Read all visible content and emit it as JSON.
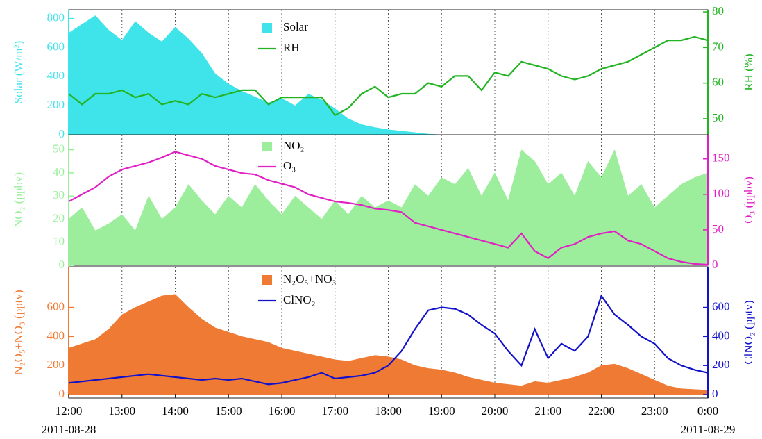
{
  "chart_data": [
    {
      "type": "combo",
      "x": [
        12,
        12.25,
        12.5,
        12.75,
        13,
        13.25,
        13.5,
        13.75,
        14,
        14.25,
        14.5,
        14.75,
        15,
        15.25,
        15.5,
        15.75,
        16,
        16.25,
        16.5,
        16.75,
        17,
        17.25,
        17.5,
        17.75,
        18,
        18.25,
        18.5,
        18.75,
        19,
        19.25,
        19.5,
        19.75,
        20,
        20.25,
        20.5,
        20.75,
        21,
        21.25,
        21.5,
        21.75,
        22,
        22.25,
        22.5,
        22.75,
        23,
        23.25,
        23.5,
        23.75,
        24
      ],
      "xlim": [
        12,
        24
      ],
      "ylim": [
        0,
        860
      ],
      "yticks": [
        0,
        200,
        400,
        600,
        800
      ],
      "ylabel": "Solar (W/m²)",
      "y2lim": [
        45.5,
        80.6
      ],
      "y2ticks": [
        50,
        60,
        70,
        80
      ],
      "y2label": "RH (%)",
      "series": [
        {
          "name": "Solar",
          "type": "area",
          "color": "#3fe3ea",
          "values": [
            700,
            760,
            820,
            720,
            650,
            780,
            700,
            640,
            740,
            660,
            560,
            420,
            350,
            300,
            260,
            220,
            250,
            200,
            280,
            240,
            180,
            110,
            70,
            50,
            35,
            25,
            15,
            5,
            0,
            0,
            0,
            0,
            0,
            0,
            0,
            0,
            0,
            0,
            0,
            0,
            0,
            0,
            0,
            0,
            0,
            0,
            0,
            0,
            0
          ]
        },
        {
          "name": "RH",
          "type": "line",
          "axis": "y2",
          "color": "#22b422",
          "values": [
            57,
            54,
            57,
            57,
            58,
            56,
            57,
            54,
            55,
            54,
            57,
            56,
            57,
            58,
            58,
            54,
            56,
            56,
            56,
            56,
            51,
            53,
            57,
            59,
            56,
            57,
            57,
            60,
            59,
            62,
            62,
            58,
            63,
            62,
            66,
            65,
            64,
            62,
            61,
            62,
            64,
            65,
            66,
            68,
            70,
            72,
            72,
            73,
            72
          ]
        }
      ]
    },
    {
      "type": "combo",
      "x": [
        12,
        12.25,
        12.5,
        12.75,
        13,
        13.25,
        13.5,
        13.75,
        14,
        14.25,
        14.5,
        14.75,
        15,
        15.25,
        15.5,
        15.75,
        16,
        16.25,
        16.5,
        16.75,
        17,
        17.25,
        17.5,
        17.75,
        18,
        18.25,
        18.5,
        18.75,
        19,
        19.25,
        19.5,
        19.75,
        20,
        20.25,
        20.5,
        20.75,
        21,
        21.25,
        21.5,
        21.75,
        22,
        22.25,
        22.5,
        22.75,
        23,
        23.25,
        23.5,
        23.75,
        24
      ],
      "xlim": [
        12,
        24
      ],
      "ylim": [
        0,
        56.5
      ],
      "yticks": [
        0,
        10,
        20,
        30,
        40,
        50
      ],
      "ylabel": "NO₂ (ppbv)",
      "y2lim": [
        0,
        184
      ],
      "y2ticks": [
        0,
        50,
        100,
        150
      ],
      "y2label": "O₃ (ppbv)",
      "series": [
        {
          "name": "NO₂",
          "type": "area",
          "color": "#9cee9c",
          "values": [
            20,
            25,
            15,
            18,
            22,
            15,
            30,
            20,
            25,
            35,
            28,
            22,
            30,
            25,
            35,
            28,
            22,
            30,
            25,
            20,
            28,
            22,
            30,
            25,
            28,
            25,
            35,
            30,
            38,
            35,
            42,
            30,
            40,
            28,
            50,
            45,
            35,
            40,
            30,
            45,
            38,
            50,
            30,
            35,
            25,
            30,
            35,
            38,
            40
          ]
        },
        {
          "name": "O₃",
          "type": "line",
          "axis": "y2",
          "color": "#e020c4",
          "values": [
            90,
            100,
            110,
            125,
            135,
            140,
            145,
            152,
            160,
            155,
            150,
            140,
            135,
            130,
            128,
            120,
            115,
            110,
            100,
            95,
            90,
            88,
            85,
            80,
            78,
            75,
            60,
            55,
            50,
            45,
            40,
            35,
            30,
            25,
            45,
            20,
            10,
            25,
            30,
            40,
            45,
            48,
            35,
            30,
            20,
            10,
            5,
            2,
            1
          ]
        }
      ]
    },
    {
      "type": "combo",
      "x": [
        12,
        12.25,
        12.5,
        12.75,
        13,
        13.25,
        13.5,
        13.75,
        14,
        14.25,
        14.5,
        14.75,
        15,
        15.25,
        15.5,
        15.75,
        16,
        16.25,
        16.5,
        16.75,
        17,
        17.25,
        17.5,
        17.75,
        18,
        18.25,
        18.5,
        18.75,
        19,
        19.25,
        19.5,
        19.75,
        20,
        20.25,
        20.5,
        20.75,
        21,
        21.25,
        21.5,
        21.75,
        22,
        22.25,
        22.5,
        22.75,
        23,
        23.25,
        23.5,
        23.75,
        24
      ],
      "xlim": [
        12,
        24
      ],
      "xticks": [
        {
          "value": 12,
          "label": "12:00"
        },
        {
          "value": 13,
          "label": "13:00"
        },
        {
          "value": 14,
          "label": "14:00"
        },
        {
          "value": 15,
          "label": "15:00"
        },
        {
          "value": 16,
          "label": "16:00"
        },
        {
          "value": 17,
          "label": "17:00"
        },
        {
          "value": 18,
          "label": "18:00"
        },
        {
          "value": 19,
          "label": "19:00"
        },
        {
          "value": 20,
          "label": "20:00"
        },
        {
          "value": 21,
          "label": "21:00"
        },
        {
          "value": 22,
          "label": "22:00"
        },
        {
          "value": 23,
          "label": "23:00"
        },
        {
          "value": 24,
          "label": "0:00"
        }
      ],
      "date_labels": [
        {
          "value": 12,
          "label": "2011-08-28"
        },
        {
          "value": 24,
          "label": "2011-08-29"
        }
      ],
      "ylim": [
        -24,
        880
      ],
      "yticks": [
        0,
        200,
        400,
        600
      ],
      "ylabel": "N₂O₅+NO₃ (pptv)",
      "y2lim": [
        -24,
        880
      ],
      "y2ticks": [
        0,
        200,
        400,
        600
      ],
      "y2label": "ClNO₂ (pptv)",
      "series": [
        {
          "name": "N₂O₅+NO₃",
          "type": "area",
          "color": "#ef7a34",
          "values": [
            320,
            350,
            380,
            450,
            550,
            600,
            640,
            680,
            690,
            600,
            520,
            460,
            430,
            400,
            380,
            360,
            320,
            300,
            280,
            260,
            240,
            230,
            250,
            270,
            260,
            240,
            200,
            180,
            170,
            150,
            120,
            100,
            80,
            70,
            60,
            90,
            80,
            100,
            120,
            150,
            200,
            210,
            180,
            140,
            100,
            60,
            40,
            35,
            30
          ]
        },
        {
          "name": "ClNO₂",
          "type": "line",
          "axis": "y2",
          "color": "#1212cc",
          "values": [
            80,
            90,
            100,
            110,
            120,
            130,
            140,
            130,
            120,
            110,
            100,
            110,
            100,
            110,
            90,
            70,
            80,
            100,
            120,
            150,
            110,
            120,
            130,
            150,
            200,
            300,
            450,
            580,
            600,
            590,
            550,
            480,
            420,
            300,
            200,
            450,
            250,
            350,
            300,
            400,
            680,
            550,
            480,
            400,
            350,
            250,
            200,
            170,
            150
          ]
        }
      ]
    }
  ]
}
